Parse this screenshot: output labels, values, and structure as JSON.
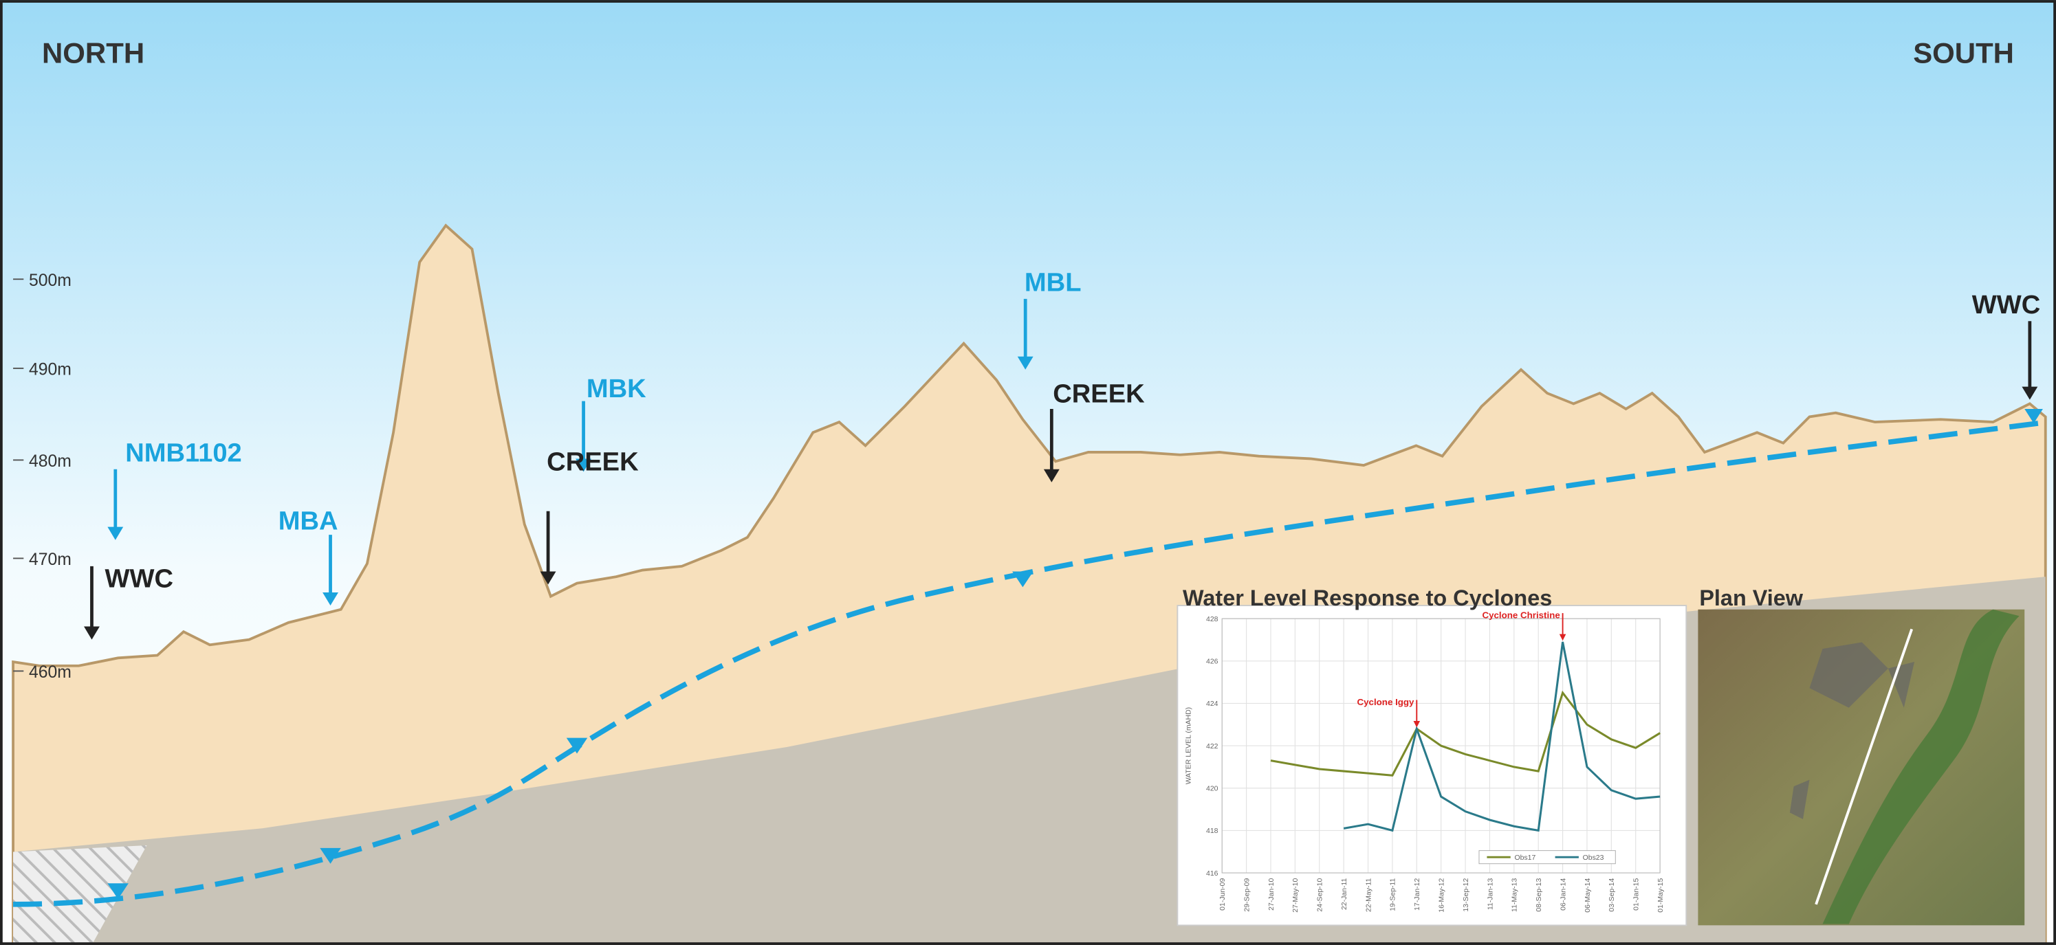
{
  "header": {
    "left": "NORTH",
    "right": "SOUTH"
  },
  "elevation_labels": [
    "500m",
    "490m",
    "480m",
    "470m",
    "460m"
  ],
  "labels": [
    {
      "text": "NMB1102",
      "color": "#1aa3dd"
    },
    {
      "text": "WWC",
      "color": "#222222"
    },
    {
      "text": "MBA",
      "color": "#1aa3dd"
    },
    {
      "text": "MBK",
      "color": "#1aa3dd"
    },
    {
      "text": "CREEK",
      "color": "#222222"
    },
    {
      "text": "MBL",
      "color": "#1aa3dd"
    },
    {
      "text": "CREEK",
      "color": "#222222"
    },
    {
      "text": "WWC",
      "color": "#222222"
    }
  ],
  "plan_view": {
    "title": "Plan View"
  },
  "inset_chart": {
    "type": "line",
    "title": "Water Level Response to Cyclones",
    "y_label": "WATER LEVEL (mAHD)",
    "categories": [
      "01-Jun-09",
      "29-Sep-09",
      "27-Jan-10",
      "27-May-10",
      "24-Sep-10",
      "22-Jan-11",
      "22-May-11",
      "19-Sep-11",
      "17-Jan-12",
      "16-May-12",
      "13-Sep-12",
      "11-Jan-13",
      "11-May-13",
      "08-Sep-13",
      "06-Jan-14",
      "06-May-14",
      "03-Sep-14",
      "01-Jan-15",
      "01-May-15"
    ],
    "series": [
      {
        "name": "Obs17",
        "color": "#7a8a2a",
        "values": [
          null,
          null,
          421.3,
          421.1,
          420.9,
          420.8,
          420.7,
          420.6,
          422.8,
          422.0,
          421.6,
          421.3,
          421.0,
          420.8,
          424.5,
          423.0,
          422.3,
          421.9,
          422.6
        ]
      },
      {
        "name": "Obs23",
        "color": "#2a7a8a",
        "values": [
          null,
          null,
          null,
          null,
          null,
          418.1,
          418.3,
          418.0,
          422.8,
          419.6,
          418.9,
          418.5,
          418.2,
          418.0,
          426.9,
          421.0,
          419.9,
          419.5,
          419.6
        ]
      }
    ],
    "annotations": [
      {
        "text": "Cyclone Iggy",
        "x": "17-Jan-12"
      },
      {
        "text": "Cyclone Christine",
        "x": "06-Jan-14"
      }
    ],
    "ylim": [
      416,
      428
    ],
    "yticks": [
      416,
      418,
      420,
      422,
      424,
      426,
      428
    ],
    "grid": true
  }
}
